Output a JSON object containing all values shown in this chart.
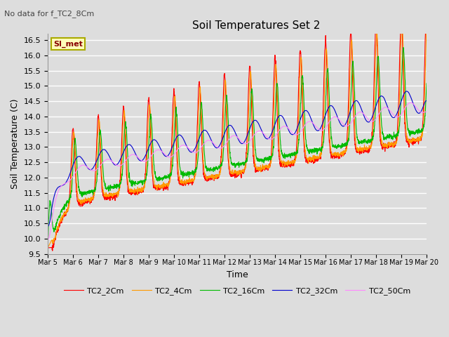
{
  "title": "Soil Temperatures Set 2",
  "subtitle": "No data for f_TC2_8Cm",
  "xlabel": "Time",
  "ylabel": "Soil Temperature (C)",
  "ylim": [
    9.5,
    16.7
  ],
  "legend_label": "SI_met",
  "series_names": [
    "TC2_2Cm",
    "TC2_4Cm",
    "TC2_16Cm",
    "TC2_32Cm",
    "TC2_50Cm"
  ],
  "series_colors": [
    "#ff0000",
    "#ff9900",
    "#00bb00",
    "#0000cc",
    "#ff88ff"
  ],
  "background_color": "#dddddd",
  "plot_bg_color": "#dddddd",
  "grid_color": "#ffffff",
  "xtick_labels": [
    "Mar 5",
    "Mar 6",
    "Mar 7",
    "Mar 8",
    "Mar 9",
    "Mar 10",
    "Mar 11",
    "Mar 12",
    "Mar 13",
    "Mar 14",
    "Mar 15",
    "Mar 16",
    "Mar 17",
    "Mar 18",
    "Mar 19",
    "Mar 20"
  ],
  "n_days": 15,
  "pts_per_day": 144,
  "figwidth": 6.4,
  "figheight": 4.8,
  "dpi": 100
}
